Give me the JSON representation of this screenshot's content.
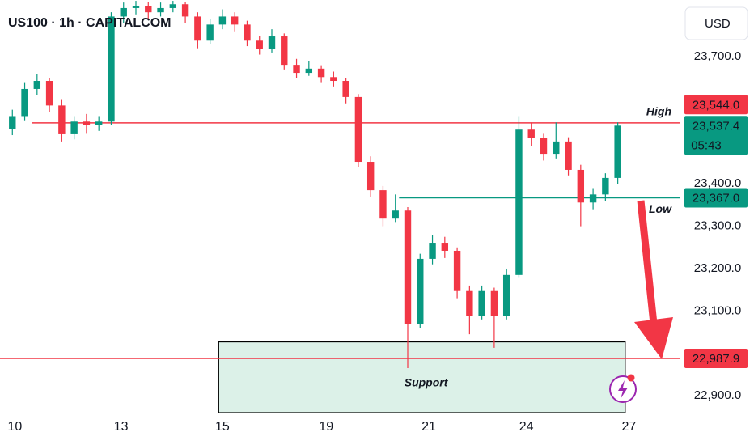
{
  "chart_data": {
    "type": "candlestick",
    "title": "US100 · 1h · CAPITALCOM",
    "currency": "USD",
    "up_color": "#089981",
    "down_color": "#f23645",
    "x": [
      0,
      1,
      2,
      3,
      4,
      5,
      6,
      7,
      8,
      9,
      10,
      11,
      12,
      13,
      14,
      15,
      16,
      17,
      18,
      19,
      20,
      21,
      22,
      23,
      24,
      25,
      26,
      27,
      28,
      29,
      30,
      31,
      32,
      33,
      34,
      35,
      36,
      37,
      38,
      39,
      40,
      41,
      42,
      43,
      44,
      45,
      46,
      47,
      48,
      49
    ],
    "open": [
      23530,
      23560,
      23624,
      23643,
      23585,
      23519,
      23547,
      23538,
      23547,
      23795,
      23815,
      23820,
      23805,
      23815,
      23824,
      23795,
      23738,
      23776,
      23795,
      23776,
      23738,
      23719,
      23748,
      23681,
      23662,
      23672,
      23652,
      23643,
      23605,
      23452,
      23385,
      23318,
      23337,
      23070,
      23223,
      23261,
      23242,
      23147,
      23089,
      23147,
      23089,
      23185,
      23528,
      23509,
      23471,
      23500,
      23433,
      23356,
      23375,
      23414
    ],
    "high": [
      23575,
      23640,
      23660,
      23650,
      23600,
      23560,
      23565,
      23560,
      23805,
      23828,
      23832,
      23830,
      23828,
      23832,
      23830,
      23805,
      23790,
      23812,
      23805,
      23785,
      23750,
      23765,
      23755,
      23695,
      23690,
      23680,
      23665,
      23650,
      23612,
      23465,
      23395,
      23375,
      23345,
      23235,
      23280,
      23275,
      23250,
      23160,
      23160,
      23155,
      23200,
      23560,
      23545,
      23520,
      23545,
      23510,
      23445,
      23390,
      23425,
      23545
    ],
    "low": [
      23515,
      23550,
      23610,
      23570,
      23500,
      23505,
      23520,
      23525,
      23540,
      23780,
      23800,
      23790,
      23795,
      23805,
      23780,
      23720,
      23730,
      23765,
      23760,
      23725,
      23705,
      23710,
      23670,
      23650,
      23655,
      23640,
      23630,
      23590,
      23440,
      23370,
      23300,
      23310,
      22965,
      23060,
      23210,
      23225,
      23130,
      23045,
      23080,
      23013,
      23080,
      23180,
      23490,
      23455,
      23460,
      23420,
      23300,
      23340,
      23360,
      23400
    ],
    "close": [
      23560,
      23624,
      23643,
      23585,
      23519,
      23547,
      23538,
      23547,
      23795,
      23815,
      23820,
      23805,
      23815,
      23824,
      23795,
      23738,
      23776,
      23795,
      23776,
      23738,
      23719,
      23748,
      23681,
      23662,
      23672,
      23652,
      23643,
      23605,
      23452,
      23385,
      23318,
      23337,
      23070,
      23223,
      23261,
      23242,
      23147,
      23089,
      23147,
      23089,
      23185,
      23528,
      23509,
      23471,
      23500,
      23433,
      23356,
      23375,
      23414,
      23537.4
    ],
    "xlim": [
      -1,
      54
    ],
    "xticks": [
      {
        "value": 0.2,
        "label": "10"
      },
      {
        "value": 8.8,
        "label": "13"
      },
      {
        "value": 17,
        "label": "15"
      },
      {
        "value": 25.4,
        "label": "19"
      },
      {
        "value": 33.7,
        "label": "21"
      },
      {
        "value": 41.6,
        "label": "24"
      },
      {
        "value": 49.9,
        "label": "27"
      }
    ],
    "ylim": [
      22860,
      23834
    ],
    "yticks": [
      {
        "value": 23700,
        "label": "23,700.0"
      },
      {
        "value": 23400,
        "label": "23,400.0"
      },
      {
        "value": 23300,
        "label": "23,300.0"
      },
      {
        "value": 23200,
        "label": "23,200.0"
      },
      {
        "value": 23100,
        "label": "23,100.0"
      },
      {
        "value": 22900,
        "label": "22,900.0"
      }
    ],
    "grid": false,
    "levels": [
      {
        "name": "High",
        "value": 23544,
        "label": "23,544.0",
        "color": "#f23645",
        "from": 1.6
      },
      {
        "name": "Low",
        "value": 23367,
        "label": "23,367.0",
        "color": "#089981",
        "from": 31.3
      },
      {
        "value": 22987.9,
        "label": "22,987.9",
        "color": "#f23645",
        "from": -1
      }
    ],
    "last_price": {
      "value": 23537.4,
      "label": "23,537.4",
      "countdown": "05:43",
      "color": "#089981"
    },
    "support_zone": {
      "name": "Support",
      "top": 23027,
      "from": 16.7,
      "to": 49.6,
      "color": "#dcf1e8"
    }
  }
}
